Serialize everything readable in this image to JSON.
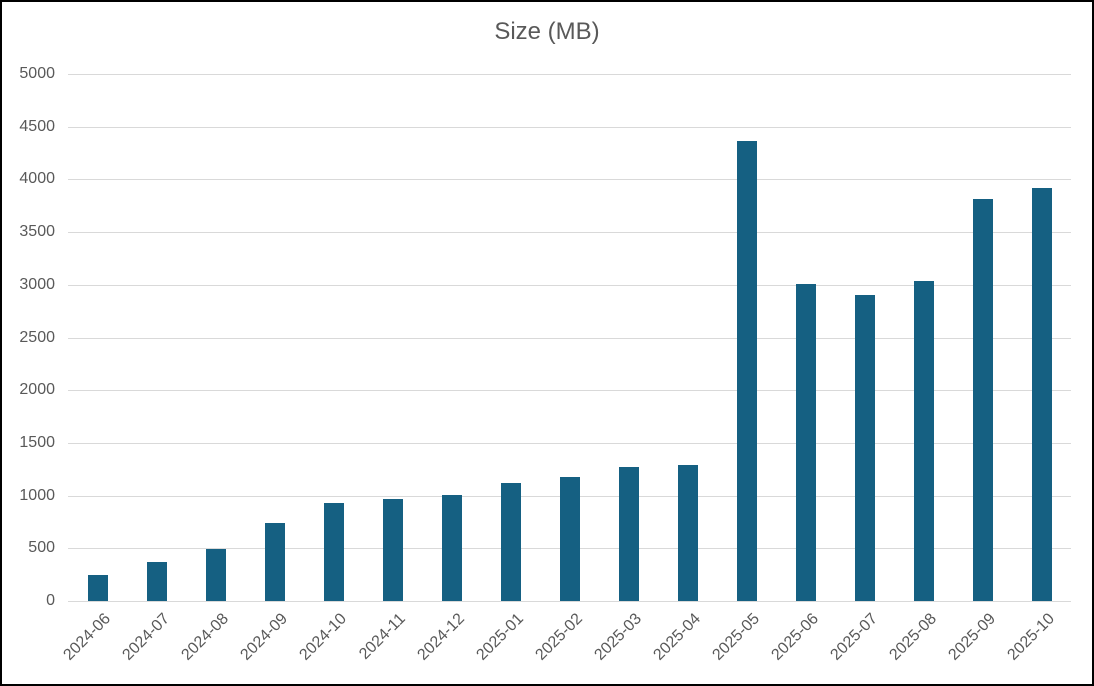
{
  "chart_data": {
    "type": "bar",
    "title": "Size (MB)",
    "categories": [
      "2024-06",
      "2024-07",
      "2024-08",
      "2024-09",
      "2024-10",
      "2024-11",
      "2024-12",
      "2025-01",
      "2025-02",
      "2025-03",
      "2025-04",
      "2025-05",
      "2025-06",
      "2025-07",
      "2025-08",
      "2025-09",
      "2025-10"
    ],
    "values": [
      250,
      370,
      490,
      740,
      930,
      970,
      1010,
      1120,
      1180,
      1270,
      1290,
      4360,
      3010,
      2900,
      3040,
      3810,
      3920
    ],
    "xlabel": "",
    "ylabel": "",
    "ylim": [
      0,
      5000
    ],
    "ytick_step": 500,
    "yticks": [
      0,
      500,
      1000,
      1500,
      2000,
      2500,
      3000,
      3500,
      4000,
      4500,
      5000
    ],
    "ytick_labels": [
      "0",
      "500",
      "1000",
      "1500",
      "2000",
      "2500",
      "3000",
      "3500",
      "4000",
      "4500",
      "5000"
    ],
    "xtick_rotation_deg": 45,
    "grid": true,
    "legend": "none",
    "colors": {
      "bar": "#156082",
      "gridline": "#D9D9D9",
      "text": "#595959",
      "background": "#FFFFFF",
      "frame": "#000000"
    }
  }
}
